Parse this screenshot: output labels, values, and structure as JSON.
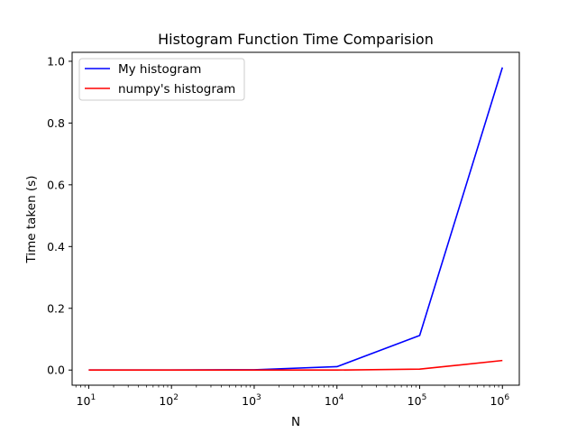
{
  "chart_data": {
    "type": "line",
    "title": "Histogram Function Time Comparision",
    "xlabel": "N",
    "ylabel": "Time taken (s)",
    "x_scale": "log",
    "x": [
      10,
      100,
      1000,
      10000,
      100000,
      1000000
    ],
    "xlim": [
      6.3,
      1600000
    ],
    "ylim": [
      -0.049,
      1.029
    ],
    "xticks": [
      {
        "value": 10,
        "base": "10",
        "exp": "1"
      },
      {
        "value": 100,
        "base": "10",
        "exp": "2"
      },
      {
        "value": 1000,
        "base": "10",
        "exp": "3"
      },
      {
        "value": 10000,
        "base": "10",
        "exp": "4"
      },
      {
        "value": 100000,
        "base": "10",
        "exp": "5"
      },
      {
        "value": 1000000,
        "base": "10",
        "exp": "6"
      }
    ],
    "yticks": [
      {
        "value": 0.0,
        "label": "0.0"
      },
      {
        "value": 0.2,
        "label": "0.2"
      },
      {
        "value": 0.4,
        "label": "0.4"
      },
      {
        "value": 0.6,
        "label": "0.6"
      },
      {
        "value": 0.8,
        "label": "0.8"
      },
      {
        "value": 1.0,
        "label": "1.0"
      }
    ],
    "series": [
      {
        "name": "My histogram",
        "color": "#0000ff",
        "values": [
          0.0,
          0.0,
          0.001,
          0.011,
          0.112,
          0.98
        ]
      },
      {
        "name": "numpy's histogram",
        "color": "#ff0000",
        "values": [
          0.0,
          0.0,
          0.0,
          0.0,
          0.003,
          0.031
        ]
      }
    ],
    "grid": false,
    "legend": "top-left"
  }
}
